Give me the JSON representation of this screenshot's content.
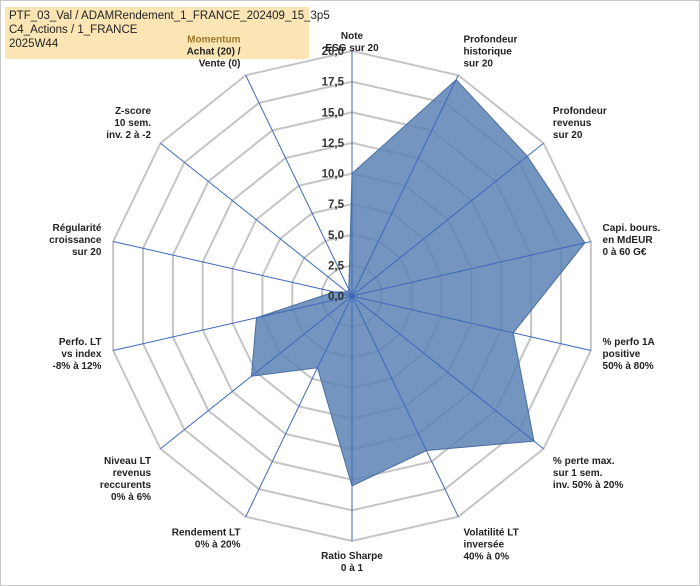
{
  "title_lines": [
    "PTF_03_Val / ADAMRendement_1_FRANCE_202409_15_3p5",
    "C4_Actions / 1_FRANCE",
    "2025W44"
  ],
  "chart_data": {
    "type": "radar",
    "range": [
      0,
      20
    ],
    "ticks": [
      "0,0",
      "2,5",
      "5,0",
      "7,5",
      "10,0",
      "12,5",
      "15,0",
      "17,5",
      "20,0"
    ],
    "tick_values": [
      0,
      2.5,
      5,
      7.5,
      10,
      12.5,
      15,
      17.5,
      20
    ],
    "grid": true,
    "series_color": "#5b82b5",
    "axes": [
      {
        "label": [
          "Note",
          "ESG sur 20"
        ]
      },
      {
        "label": [
          "Profondeur",
          "historique",
          "sur 20"
        ]
      },
      {
        "label": [
          "Profondeur",
          "revenus",
          "sur 20"
        ]
      },
      {
        "label": [
          "Capi. bours.",
          "en MdEUR",
          "0 à 60 G€"
        ]
      },
      {
        "label": [
          "% perfo 1A",
          "positive",
          "50% à 80%"
        ]
      },
      {
        "label": [
          "% perte max.",
          "sur 1 sem.",
          "inv. 50% à 20%"
        ]
      },
      {
        "label": [
          "Volatilité LT",
          "inversée",
          "40% à 0%"
        ]
      },
      {
        "label": [
          "Ratio Sharpe",
          "0 à 1"
        ]
      },
      {
        "label": [
          "Rendement LT",
          "0% à 20%"
        ]
      },
      {
        "label": [
          "Niveau LT",
          "revenus",
          "reccurents",
          "0% à 6%"
        ]
      },
      {
        "label": [
          "Perfo. LT",
          "vs index",
          "-8% à 12%"
        ]
      },
      {
        "label": [
          "Régularité",
          "croissance",
          "sur 20"
        ]
      },
      {
        "label": [
          "Z-score",
          "10 sem.",
          "inv. 2 à -2"
        ]
      },
      {
        "label": [
          "Momentum",
          "Achat (20) /",
          "Vente (0)"
        ]
      }
    ],
    "values": [
      10,
      19.6,
      18.3,
      19.5,
      13.5,
      19,
      14,
      15.5,
      6.5,
      10.5,
      8,
      1.5,
      0.5,
      0.6
    ]
  }
}
